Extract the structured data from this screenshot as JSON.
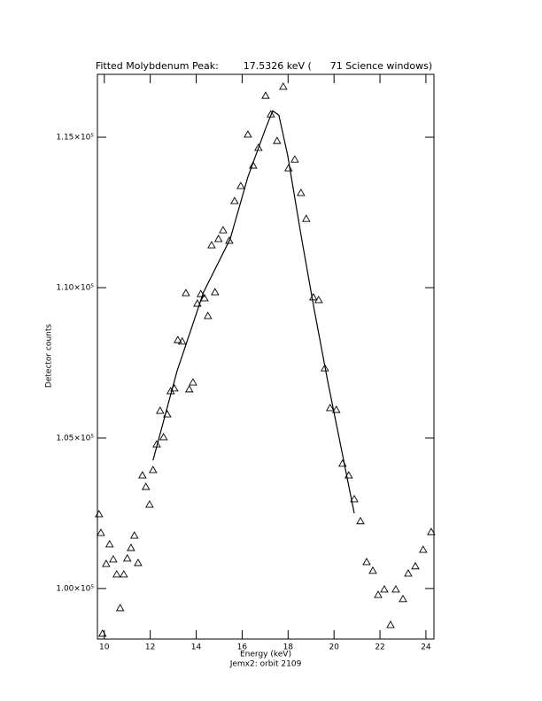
{
  "chart_data": {
    "type": "scatter",
    "title": "Fitted Molybdenum Peak:        17.5326 keV (      71 Science windows)",
    "xlabel": "Energy (keV)",
    "subtitle": "Jemx2: orbit 2109",
    "ylabel": "Detector counts",
    "xlim": [
      9.7,
      24.35
    ],
    "ylim": [
      98320,
      117090
    ],
    "xticks": [
      10,
      12,
      14,
      16,
      18,
      20,
      22,
      24
    ],
    "yticks": [
      {
        "value": 100000,
        "label": "1.00×10⁵"
      },
      {
        "value": 105000,
        "label": "1.05×10⁵"
      },
      {
        "value": 110000,
        "label": "1.10×10⁵"
      },
      {
        "value": 115000,
        "label": "1.15×10⁵"
      }
    ],
    "color": "#000000",
    "series": [
      {
        "marker": "triangle",
        "x": [
          9.77,
          9.85,
          9.92,
          10.08,
          10.23,
          10.39,
          10.54,
          10.69,
          10.85,
          11.0,
          11.16,
          11.31,
          11.47,
          11.66,
          11.81,
          11.97,
          12.12,
          12.28,
          12.43,
          12.58,
          12.74,
          12.89,
          13.05,
          13.2,
          13.39,
          13.55,
          13.7,
          13.86,
          14.05,
          14.2,
          14.36,
          14.51,
          14.67,
          14.82,
          14.97,
          15.17,
          15.44,
          15.67,
          15.94,
          16.25,
          16.48,
          16.71,
          17.02,
          17.25,
          17.52,
          17.79,
          18.02,
          18.29,
          18.56,
          18.79,
          19.1,
          19.33,
          19.6,
          19.83,
          20.1,
          20.37,
          20.64,
          20.88,
          21.15,
          21.42,
          21.69,
          21.92,
          22.19,
          22.46,
          22.69,
          23.0,
          23.23,
          23.54,
          23.88,
          24.23
        ],
        "values": [
          102470,
          101850,
          98500,
          100820,
          101470,
          100970,
          100470,
          99350,
          100470,
          101000,
          101350,
          101760,
          100850,
          103760,
          103380,
          102790,
          103940,
          104790,
          105910,
          105030,
          105790,
          106560,
          106650,
          108260,
          108210,
          109820,
          106620,
          106850,
          109470,
          109790,
          109650,
          109060,
          111410,
          109850,
          111620,
          111910,
          111560,
          112880,
          113380,
          115090,
          114060,
          114650,
          116380,
          115760,
          114880,
          116680,
          113970,
          114260,
          113150,
          112290,
          109680,
          109590,
          107320,
          106000,
          105940,
          104150,
          103760,
          102970,
          102240,
          100880,
          100590,
          99790,
          99970,
          98790,
          99970,
          99650,
          100500,
          100740,
          101290,
          101880
        ]
      },
      {
        "marker": "line",
        "x": [
          12.12,
          13.16,
          14.32,
          15.48,
          16.25,
          17.02,
          17.33,
          17.6,
          17.98,
          18.56,
          19.14,
          19.72,
          20.3,
          20.88
        ],
        "values": [
          104260,
          107210,
          109850,
          111620,
          113680,
          115290,
          115880,
          115730,
          114410,
          111760,
          109260,
          106910,
          104710,
          102500
        ]
      }
    ]
  }
}
